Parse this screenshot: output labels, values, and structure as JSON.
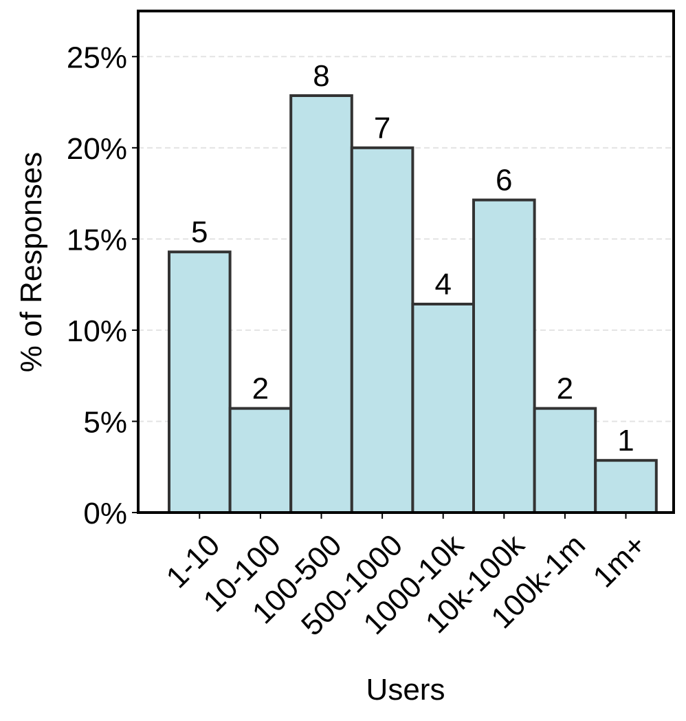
{
  "chart_data": {
    "type": "bar",
    "title": "",
    "xlabel": "Users",
    "ylabel": "% of Responses",
    "categories": [
      "1-10",
      "10-100",
      "100-500",
      "500-1000",
      "1000-10k",
      "10k-100k",
      "100k-1m",
      "1m+"
    ],
    "counts": [
      5,
      2,
      8,
      7,
      4,
      6,
      2,
      1
    ],
    "values": [
      14.29,
      5.71,
      22.86,
      20.0,
      11.43,
      17.14,
      5.71,
      2.86
    ],
    "value_unit": "%",
    "ylim": [
      0,
      27.5
    ],
    "yticks": [
      0,
      5,
      10,
      15,
      20,
      25
    ],
    "ytick_labels": [
      "0%",
      "5%",
      "10%",
      "15%",
      "20%",
      "25%"
    ],
    "grid": "horizontal dashed",
    "legend": "none",
    "colors": {
      "bar_fill": "#bde2e9",
      "bar_edge": "#333333",
      "grid": "#e3e3e3",
      "axis": "#000000"
    }
  }
}
